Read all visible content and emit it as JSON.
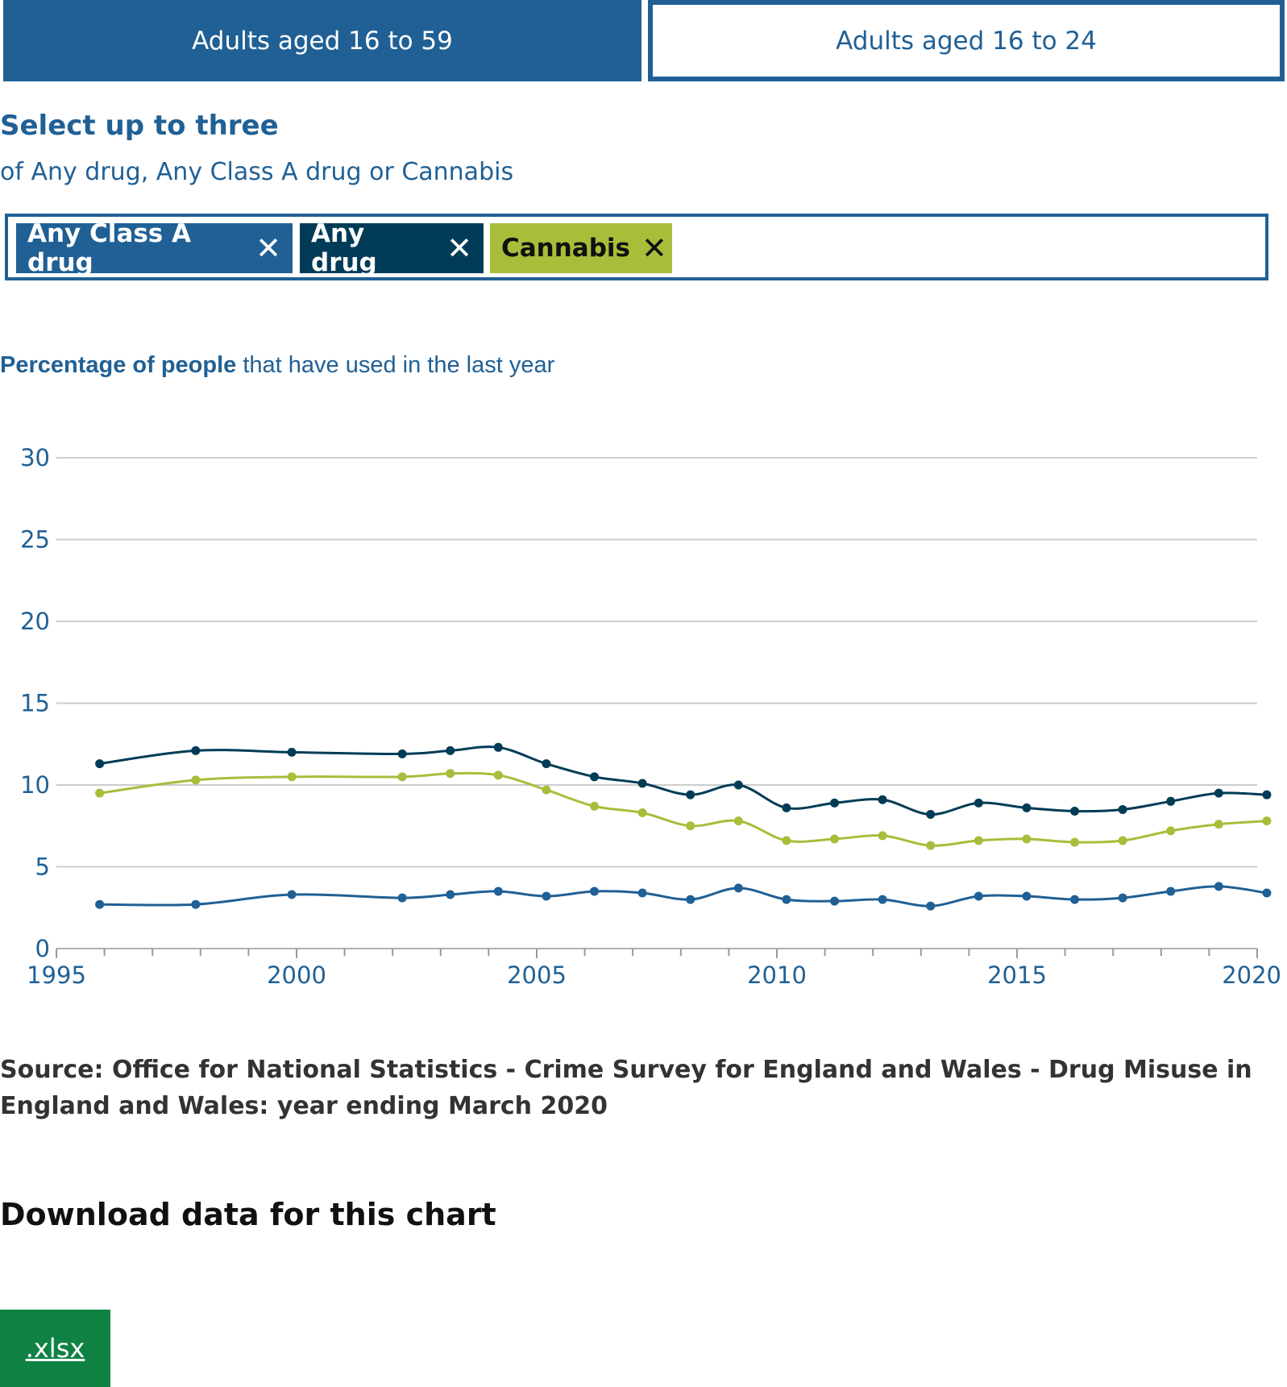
{
  "tabs": [
    {
      "label": "Adults aged 16 to 59",
      "active": true
    },
    {
      "label": "Adults aged 16 to 24",
      "active": false
    }
  ],
  "selector": {
    "heading": "Select up to three",
    "subheading": "of Any drug, Any Class A drug or Cannabis",
    "chips": [
      {
        "label": "Any Class A drug",
        "remove_icon": "close-icon",
        "color": "#206095"
      },
      {
        "label": "Any drug",
        "remove_icon": "close-icon",
        "color": "#003c57"
      },
      {
        "label": "Cannabis",
        "remove_icon": "close-icon",
        "color": "#a8bd3a"
      }
    ]
  },
  "chart_title": {
    "bold": "Percentage of people",
    "rest": " that have used in the last year"
  },
  "chart_data": {
    "type": "line",
    "title": "Percentage of people that have used in the last year",
    "xlabel": "",
    "ylabel": "",
    "xlim": [
      1995,
      2020
    ],
    "ylim": [
      0,
      30
    ],
    "x_ticks": [
      "1995",
      "2000",
      "2005",
      "2010",
      "2015",
      "2020"
    ],
    "y_ticks": [
      "0",
      "5",
      "10",
      "15",
      "20",
      "25",
      "30"
    ],
    "grid": true,
    "legend": "none",
    "series": [
      {
        "name": "Any drug",
        "color": "#003c57",
        "points": [
          [
            1995.9,
            11.3
          ],
          [
            1997.9,
            12.1
          ],
          [
            1999.9,
            12.0
          ],
          [
            2002.2,
            11.9
          ],
          [
            2003.2,
            12.1
          ],
          [
            2004.2,
            12.3
          ],
          [
            2005.2,
            11.3
          ],
          [
            2006.2,
            10.5
          ],
          [
            2007.2,
            10.1
          ],
          [
            2008.2,
            9.4
          ],
          [
            2009.2,
            10.0
          ],
          [
            2010.2,
            8.6
          ],
          [
            2011.2,
            8.9
          ],
          [
            2012.2,
            9.1
          ],
          [
            2013.2,
            8.2
          ],
          [
            2014.2,
            8.9
          ],
          [
            2015.2,
            8.6
          ],
          [
            2016.2,
            8.4
          ],
          [
            2017.2,
            8.5
          ],
          [
            2018.2,
            9.0
          ],
          [
            2019.2,
            9.5
          ],
          [
            2020.2,
            9.4
          ]
        ]
      },
      {
        "name": "Cannabis",
        "color": "#a8bd3a",
        "points": [
          [
            1995.9,
            9.5
          ],
          [
            1997.9,
            10.3
          ],
          [
            1999.9,
            10.5
          ],
          [
            2002.2,
            10.5
          ],
          [
            2003.2,
            10.7
          ],
          [
            2004.2,
            10.6
          ],
          [
            2005.2,
            9.7
          ],
          [
            2006.2,
            8.7
          ],
          [
            2007.2,
            8.3
          ],
          [
            2008.2,
            7.5
          ],
          [
            2009.2,
            7.8
          ],
          [
            2010.2,
            6.6
          ],
          [
            2011.2,
            6.7
          ],
          [
            2012.2,
            6.9
          ],
          [
            2013.2,
            6.3
          ],
          [
            2014.2,
            6.6
          ],
          [
            2015.2,
            6.7
          ],
          [
            2016.2,
            6.5
          ],
          [
            2017.2,
            6.6
          ],
          [
            2018.2,
            7.2
          ],
          [
            2019.2,
            7.6
          ],
          [
            2020.2,
            7.8
          ]
        ]
      },
      {
        "name": "Any Class A drug",
        "color": "#206095",
        "points": [
          [
            1995.9,
            2.7
          ],
          [
            1997.9,
            2.7
          ],
          [
            1999.9,
            3.3
          ],
          [
            2002.2,
            3.1
          ],
          [
            2003.2,
            3.3
          ],
          [
            2004.2,
            3.5
          ],
          [
            2005.2,
            3.2
          ],
          [
            2006.2,
            3.5
          ],
          [
            2007.2,
            3.4
          ],
          [
            2008.2,
            3.0
          ],
          [
            2009.2,
            3.7
          ],
          [
            2010.2,
            3.0
          ],
          [
            2011.2,
            2.9
          ],
          [
            2012.2,
            3.0
          ],
          [
            2013.2,
            2.6
          ],
          [
            2014.2,
            3.2
          ],
          [
            2015.2,
            3.2
          ],
          [
            2016.2,
            3.0
          ],
          [
            2017.2,
            3.1
          ],
          [
            2018.2,
            3.5
          ],
          [
            2019.2,
            3.8
          ],
          [
            2020.2,
            3.4
          ]
        ]
      }
    ]
  },
  "source": "Source: Office for National Statistics - Crime Survey for England and Wales - Drug Misuse in England and Wales: year ending March 2020",
  "download": {
    "heading": "Download data for this chart",
    "xlsx_label": ".xlsx",
    "button_color": "#0f8243"
  }
}
